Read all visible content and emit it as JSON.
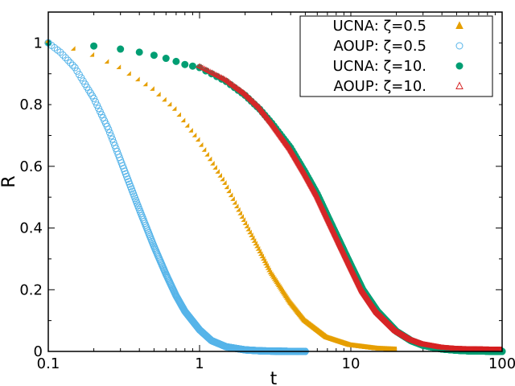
{
  "chart_data": {
    "type": "scatter",
    "title": "",
    "xlabel": "t",
    "ylabel": "R",
    "xscale": "log",
    "xlim": [
      0.1,
      100
    ],
    "ylim": [
      0,
      1.1
    ],
    "x_ticks": [
      0.1,
      1,
      10,
      100
    ],
    "x_tick_labels": [
      "0.1",
      "1",
      "10",
      "100"
    ],
    "y_ticks": [
      0,
      0.2,
      0.4,
      0.6,
      0.8,
      1
    ],
    "y_tick_labels": [
      "0",
      "0.2",
      "0.4",
      "0.6",
      "0.8",
      "1"
    ],
    "legend_position": "top-right",
    "series": [
      {
        "name": "UCNA: ζ=0.5",
        "marker": "triangle-filled",
        "color": "#e69f00",
        "x": [
          0.1,
          0.12,
          0.15,
          0.2,
          0.3,
          0.5,
          0.7,
          1.0,
          1.5,
          2.0,
          3.0,
          4.0,
          5.0,
          7.0,
          10,
          15,
          20
        ],
        "values": [
          1.0,
          0.99,
          0.975,
          0.955,
          0.915,
          0.845,
          0.78,
          0.68,
          0.54,
          0.42,
          0.25,
          0.155,
          0.095,
          0.04,
          0.015,
          0.004,
          0.001
        ]
      },
      {
        "name": "AOUP: ζ=0.5",
        "marker": "circle-open",
        "color": "#56b4e9",
        "x": [
          0.1,
          0.12,
          0.15,
          0.2,
          0.25,
          0.3,
          0.4,
          0.5,
          0.6,
          0.7,
          0.8,
          1.0,
          1.2,
          1.5,
          2.0,
          2.5,
          3.0,
          4.0,
          5.0
        ],
        "values": [
          1.0,
          0.97,
          0.92,
          0.82,
          0.72,
          0.62,
          0.46,
          0.34,
          0.25,
          0.18,
          0.13,
          0.07,
          0.035,
          0.015,
          0.005,
          0.002,
          0.001,
          0.0,
          0.0
        ]
      },
      {
        "name": "UCNA: ζ=10.",
        "marker": "circle-filled",
        "color": "#009e73",
        "x": [
          0.1,
          0.2,
          0.3,
          0.4,
          0.5,
          0.6,
          0.7,
          0.8,
          1.0,
          1.2,
          1.5,
          2.0,
          2.5,
          3.0,
          4.0,
          5.0,
          6.0,
          7.0,
          8.0,
          10,
          12,
          15,
          20,
          25,
          30,
          40,
          50,
          60,
          80,
          100
        ],
        "values": [
          1.0,
          0.99,
          0.98,
          0.97,
          0.96,
          0.95,
          0.94,
          0.93,
          0.92,
          0.9,
          0.875,
          0.83,
          0.785,
          0.74,
          0.66,
          0.58,
          0.51,
          0.44,
          0.38,
          0.28,
          0.2,
          0.13,
          0.065,
          0.035,
          0.02,
          0.008,
          0.004,
          0.002,
          0.001,
          0.0
        ]
      },
      {
        "name": "AOUP: ζ=10.",
        "marker": "triangle-open",
        "color": "#d62728",
        "x": [
          0.1,
          0.2,
          0.5,
          1.0,
          1.5,
          2.0,
          2.5,
          3.0,
          4.0,
          5.0,
          6.0,
          7.0,
          8.0,
          10,
          12,
          15,
          20,
          25,
          30,
          40,
          50,
          60,
          80,
          100
        ],
        "values": [
          1.0,
          0.99,
          0.96,
          0.92,
          0.875,
          0.83,
          0.785,
          0.735,
          0.65,
          0.57,
          0.5,
          0.43,
          0.37,
          0.27,
          0.19,
          0.12,
          0.06,
          0.032,
          0.018,
          0.007,
          0.003,
          0.002,
          0.001,
          0.0
        ]
      }
    ]
  }
}
